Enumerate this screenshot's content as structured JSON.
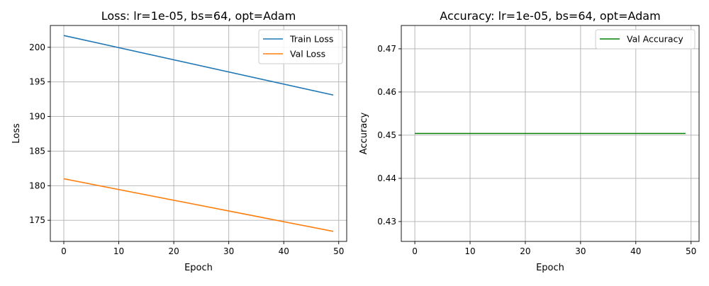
{
  "chart_data": [
    {
      "type": "line",
      "title": "Loss: lr=1e-05, bs=64, opt=Adam",
      "xlabel": "Epoch",
      "ylabel": "Loss",
      "xlim": [
        -2.45,
        51.45
      ],
      "ylim": [
        171.95,
        203.15
      ],
      "xticks": [
        0,
        10,
        20,
        30,
        40,
        50
      ],
      "yticks": [
        175,
        180,
        185,
        190,
        195,
        200
      ],
      "grid": true,
      "legend_position": "top-right",
      "series": [
        {
          "name": "Train Loss",
          "color": "#1f77b4",
          "x": [
            0,
            49
          ],
          "y": [
            201.7,
            193.1
          ]
        },
        {
          "name": "Val Loss",
          "color": "#ff7f0e",
          "x": [
            0,
            49
          ],
          "y": [
            181.0,
            173.4
          ]
        }
      ]
    },
    {
      "type": "line",
      "title": "Accuracy: lr=1e-05, bs=64, opt=Adam",
      "xlabel": "Epoch",
      "ylabel": "Accuracy",
      "xlim": [
        -2.45,
        51.45
      ],
      "ylim": [
        0.4254,
        0.4754
      ],
      "xticks": [
        0,
        10,
        20,
        30,
        40,
        50
      ],
      "yticks": [
        0.43,
        0.44,
        0.45,
        0.46,
        0.47
      ],
      "grid": true,
      "legend_position": "top-right",
      "series": [
        {
          "name": "Val Accuracy",
          "color": "#008000",
          "x": [
            0,
            49
          ],
          "y": [
            0.4504,
            0.4504
          ]
        }
      ]
    }
  ]
}
